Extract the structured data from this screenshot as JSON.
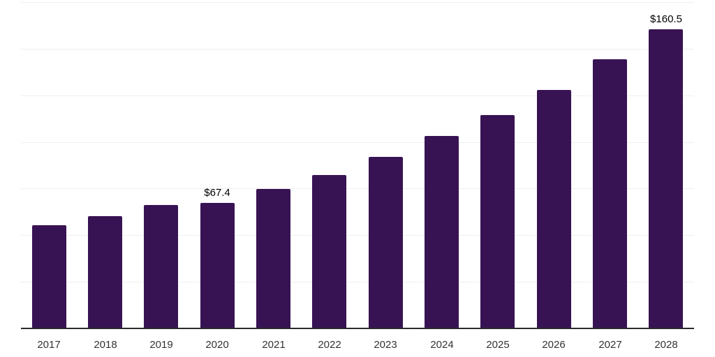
{
  "chart_data": {
    "type": "bar",
    "title": "",
    "xlabel": "",
    "ylabel": "",
    "categories": [
      "2017",
      "2018",
      "2019",
      "2020",
      "2021",
      "2022",
      "2023",
      "2024",
      "2025",
      "2026",
      "2027",
      "2028"
    ],
    "values": [
      55.3,
      60.3,
      66.1,
      67.4,
      74.6,
      82.1,
      92.1,
      103.3,
      114.5,
      128.0,
      144.4,
      160.5
    ],
    "data_labels": [
      null,
      null,
      null,
      "$67.4",
      null,
      null,
      null,
      null,
      null,
      null,
      null,
      "$160.5"
    ],
    "ylim": [
      0,
      175
    ],
    "grid": "horizontal",
    "grid_interval": 25,
    "y_axis_labels_visible": false,
    "legend": "none",
    "colors": {
      "bar": "#371353",
      "gridline": "#efefef",
      "axis_line": "#2b2b2b",
      "tick_label": "#333333",
      "data_label": "#000000",
      "background": "#ffffff"
    }
  }
}
